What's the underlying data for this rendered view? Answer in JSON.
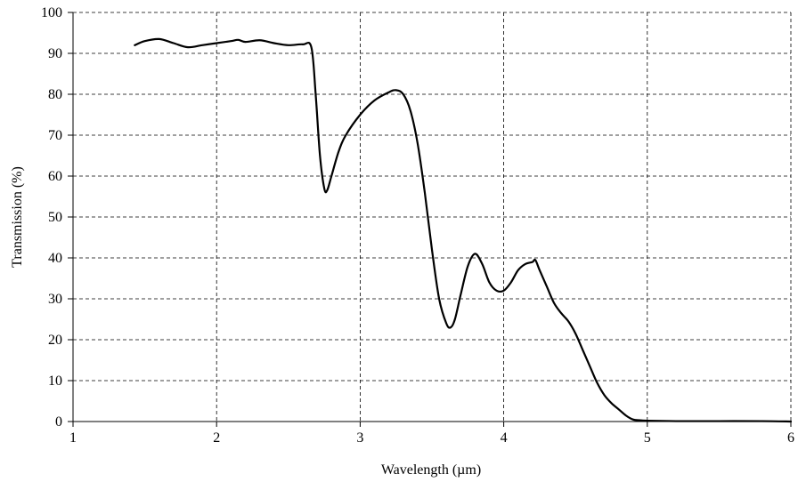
{
  "chart_data": {
    "type": "line",
    "title": "",
    "xlabel": "Wavelength (µm)",
    "ylabel": "Transmission (%)",
    "xlim": [
      1,
      6
    ],
    "ylim": [
      0,
      100
    ],
    "x_ticks": [
      1,
      2,
      3,
      4,
      5,
      6
    ],
    "y_ticks": [
      0,
      10,
      20,
      30,
      40,
      50,
      60,
      70,
      80,
      90,
      100
    ],
    "grid": true,
    "line_color": "#000000",
    "series": [
      {
        "x": [
          1.43,
          1.5,
          1.6,
          1.7,
          1.8,
          1.9,
          2.0,
          2.1,
          2.15,
          2.2,
          2.3,
          2.4,
          2.5,
          2.6,
          2.66,
          2.69,
          2.72,
          2.75,
          2.77,
          2.8,
          2.85,
          2.9,
          3.0,
          3.1,
          3.2,
          3.25,
          3.3,
          3.35,
          3.4,
          3.45,
          3.5,
          3.55,
          3.6,
          3.63,
          3.66,
          3.7,
          3.75,
          3.8,
          3.85,
          3.9,
          3.95,
          4.0,
          4.05,
          4.1,
          4.15,
          4.2,
          4.22,
          4.25,
          4.3,
          4.35,
          4.4,
          4.45,
          4.5,
          4.55,
          4.6,
          4.65,
          4.7,
          4.75,
          4.8,
          4.85,
          4.9,
          4.95,
          5.0,
          5.2,
          5.5,
          5.8,
          6.0
        ],
        "y": [
          92.0,
          93.0,
          93.5,
          92.5,
          91.5,
          92.0,
          92.5,
          93.0,
          93.3,
          92.8,
          93.2,
          92.5,
          92.0,
          92.2,
          91.5,
          80.0,
          65.0,
          57.0,
          56.5,
          60.0,
          66.0,
          70.0,
          75.0,
          78.5,
          80.5,
          81.0,
          80.0,
          76.0,
          68.0,
          56.0,
          42.0,
          30.0,
          24.0,
          23.0,
          25.0,
          31.0,
          38.0,
          41.0,
          38.5,
          34.0,
          32.0,
          32.0,
          34.0,
          37.0,
          38.5,
          39.0,
          39.5,
          37.0,
          33.0,
          29.0,
          26.5,
          24.5,
          21.5,
          17.5,
          13.5,
          9.5,
          6.5,
          4.5,
          3.0,
          1.5,
          0.5,
          0.3,
          0.2,
          0.1,
          0.1,
          0.1,
          0.0
        ]
      }
    ]
  }
}
